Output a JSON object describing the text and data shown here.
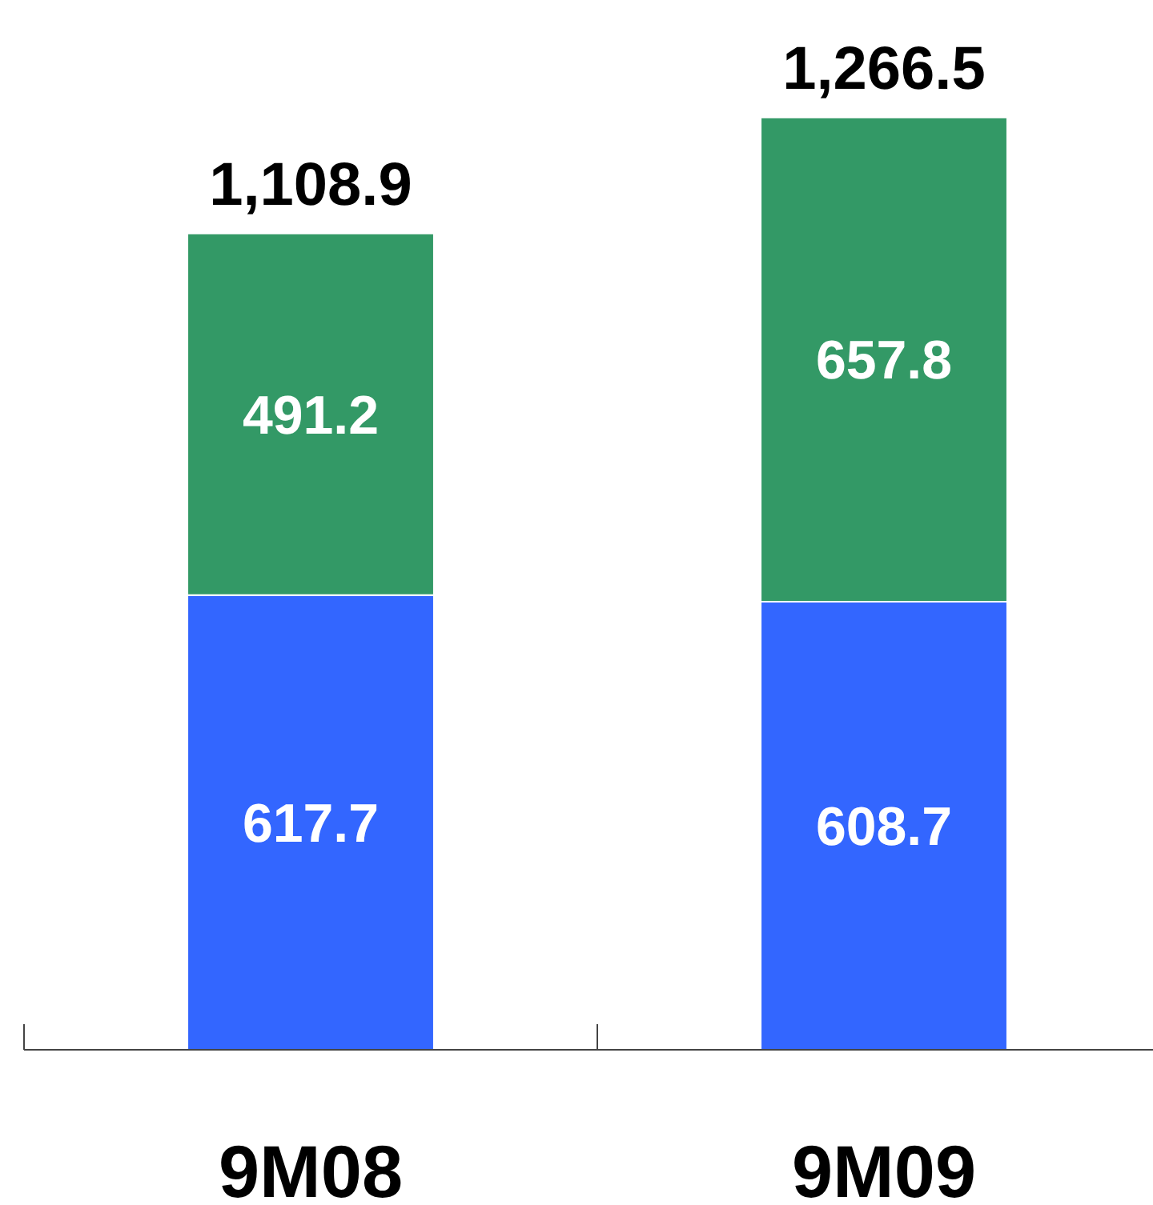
{
  "chart_data": {
    "type": "bar",
    "stacked": true,
    "categories": [
      "9M08",
      "9M09"
    ],
    "series": [
      {
        "color": "#3366ff",
        "values": [
          617.7,
          608.7
        ]
      },
      {
        "color": "#339966",
        "values": [
          491.2,
          657.8
        ]
      }
    ],
    "data_labels": true,
    "totals": [
      "1,108.9",
      "1,266.5"
    ]
  }
}
